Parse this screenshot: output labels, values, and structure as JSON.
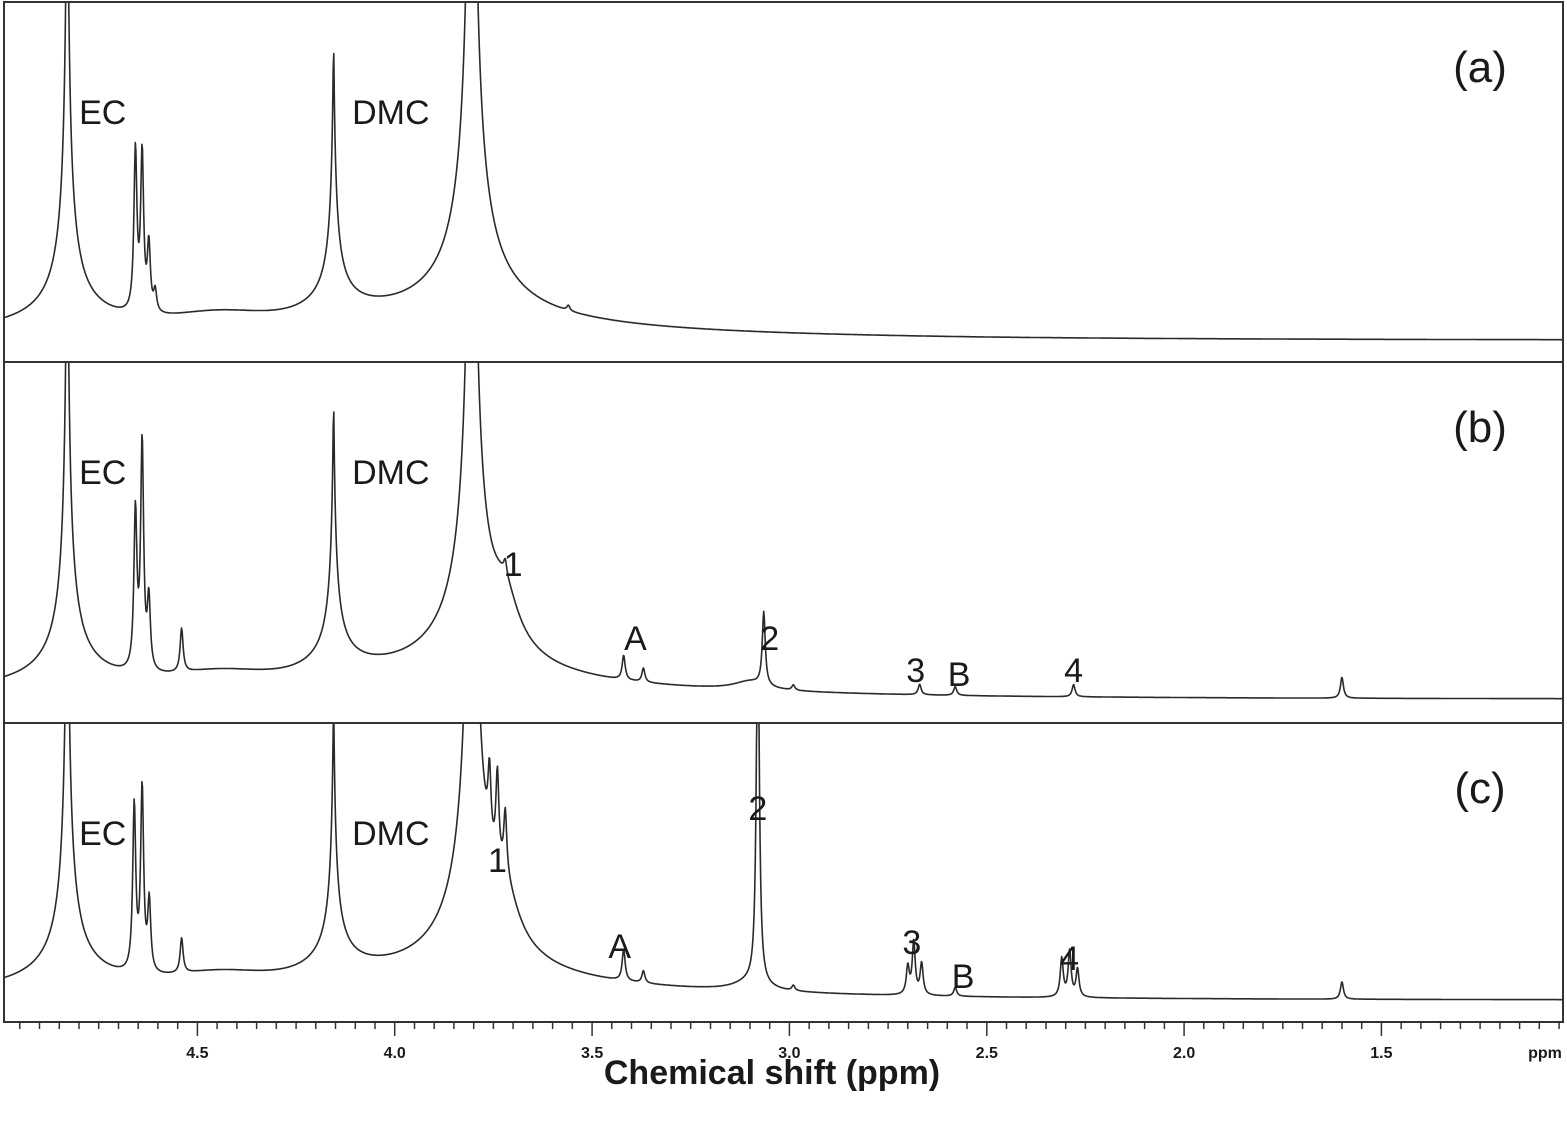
{
  "chart_data": {
    "type": "line",
    "xlabel": "Chemical shift (ppm)",
    "x_unit": "ppm",
    "xlim": [
      4.99,
      1.04
    ],
    "x_reversed": true,
    "major_ticks": [
      4.5,
      4.0,
      3.5,
      3.0,
      2.5,
      2.0,
      1.5
    ],
    "tick_labels": [
      "4.5",
      "4.0",
      "3.5",
      "3.0",
      "2.5",
      "2.0",
      "1.5"
    ],
    "panels": [
      {
        "label": "(a)",
        "annotations": [
          {
            "text": "EC",
            "ppm": 4.74
          },
          {
            "text": "DMC",
            "ppm": 4.01
          }
        ],
        "peaks": [
          {
            "ppm": 4.657,
            "height": 0.92
          },
          {
            "ppm": 4.64,
            "height": 0.9
          },
          {
            "ppm": 4.623,
            "height": 0.38
          },
          {
            "ppm": 4.607,
            "height": 0.12
          },
          {
            "ppm": 3.56,
            "height": 0.03
          }
        ],
        "solvent_cut": {
          "EC": 4.82,
          "DMC_shoulder": 4.16,
          "DMC": 3.81
        }
      },
      {
        "label": "(b)",
        "annotations": [
          {
            "text": "EC",
            "ppm": 4.74
          },
          {
            "text": "DMC",
            "ppm": 4.01
          },
          {
            "text": "1",
            "ppm": 3.7
          },
          {
            "text": "A",
            "ppm": 3.39
          },
          {
            "text": "2",
            "ppm": 3.05
          },
          {
            "text": "3",
            "ppm": 2.68
          },
          {
            "text": "B",
            "ppm": 2.57
          },
          {
            "text": "4",
            "ppm": 2.28
          }
        ],
        "peaks": [
          {
            "ppm": 4.657,
            "height": 0.9
          },
          {
            "ppm": 4.64,
            "height": 1.3
          },
          {
            "ppm": 4.623,
            "height": 0.4
          },
          {
            "ppm": 4.54,
            "height": 0.25
          },
          {
            "ppm": 3.72,
            "height": 0.08
          },
          {
            "ppm": 3.42,
            "height": 0.14
          },
          {
            "ppm": 3.37,
            "height": 0.08
          },
          {
            "ppm": 3.065,
            "height": 0.42
          },
          {
            "ppm": 2.99,
            "height": 0.03
          },
          {
            "ppm": 2.67,
            "height": 0.06
          },
          {
            "ppm": 2.58,
            "height": 0.05
          },
          {
            "ppm": 2.28,
            "height": 0.07
          },
          {
            "ppm": 1.6,
            "height": 0.12
          }
        ]
      },
      {
        "label": "(c)",
        "annotations": [
          {
            "text": "EC",
            "ppm": 4.74
          },
          {
            "text": "DMC",
            "ppm": 4.01
          },
          {
            "text": "1",
            "ppm": 3.74
          },
          {
            "text": "A",
            "ppm": 3.43
          },
          {
            "text": "2",
            "ppm": 3.08
          },
          {
            "text": "3",
            "ppm": 2.69
          },
          {
            "text": "B",
            "ppm": 2.56
          },
          {
            "text": "4",
            "ppm": 2.29
          }
        ],
        "peaks": [
          {
            "ppm": 4.66,
            "height": 0.95
          },
          {
            "ppm": 4.64,
            "height": 1.05
          },
          {
            "ppm": 4.622,
            "height": 0.4
          },
          {
            "ppm": 4.54,
            "height": 0.2
          },
          {
            "ppm": 3.76,
            "height": 0.4
          },
          {
            "ppm": 3.74,
            "height": 0.5
          },
          {
            "ppm": 3.72,
            "height": 0.35
          },
          {
            "ppm": 3.42,
            "height": 0.18
          },
          {
            "ppm": 3.37,
            "height": 0.07
          },
          {
            "ppm": 3.08,
            "height": 2.15
          },
          {
            "ppm": 2.99,
            "height": 0.03
          },
          {
            "ppm": 2.7,
            "height": 0.16
          },
          {
            "ppm": 2.685,
            "height": 0.3
          },
          {
            "ppm": 2.665,
            "height": 0.18
          },
          {
            "ppm": 2.58,
            "height": 0.05
          },
          {
            "ppm": 2.31,
            "height": 0.22
          },
          {
            "ppm": 2.29,
            "height": 0.26
          },
          {
            "ppm": 2.27,
            "height": 0.16
          },
          {
            "ppm": 1.6,
            "height": 0.1
          }
        ]
      }
    ],
    "xaxis_unit_label": "ppm"
  }
}
